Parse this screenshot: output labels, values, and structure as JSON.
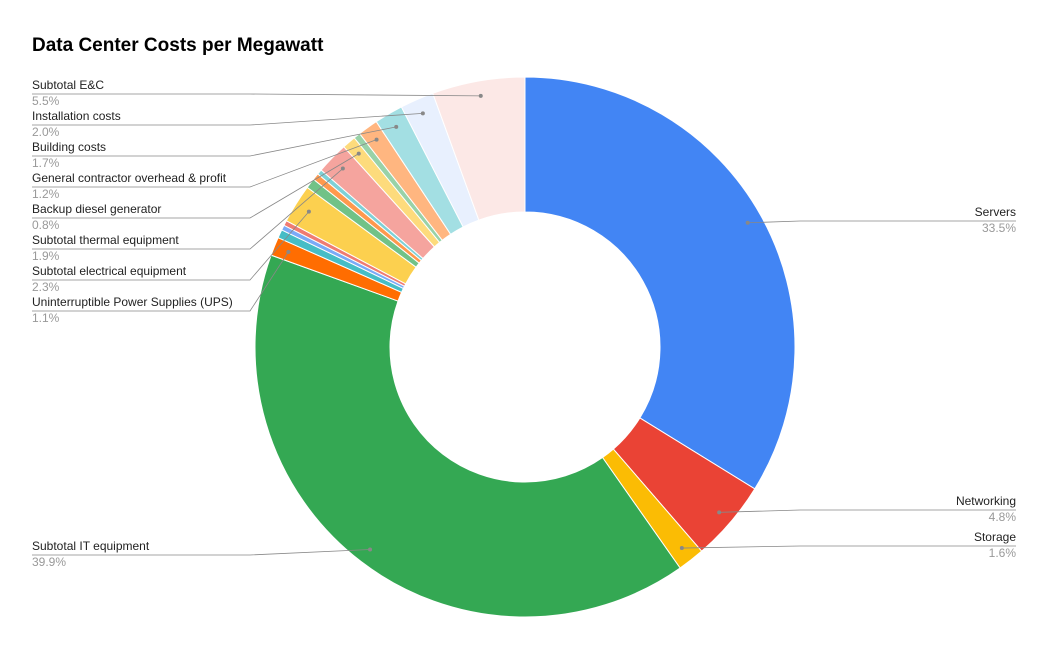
{
  "chart_data": {
    "type": "pie",
    "title": "Data Center Costs per Megawatt",
    "donut": true,
    "categories": [
      "Servers",
      "Networking",
      "Storage",
      "Subtotal IT equipment",
      "Uninterruptible Power Supplies (UPS)",
      null,
      null,
      null,
      "Subtotal electrical equipment",
      null,
      null,
      null,
      "Subtotal thermal equipment",
      "Backup diesel generator",
      null,
      "General contractor overhead & profit",
      "Building costs",
      "Installation costs",
      "Subtotal E&C"
    ],
    "values": [
      33.5,
      4.8,
      1.6,
      39.9,
      1.1,
      0.5,
      0.3,
      0.3,
      2.3,
      0.6,
      0.4,
      0.3,
      1.9,
      0.8,
      0.4,
      1.2,
      1.7,
      2.0,
      5.5
    ],
    "value_labels": [
      "33.5%",
      "4.8%",
      "1.6%",
      "39.9%",
      "1.1%",
      null,
      null,
      null,
      "2.3%",
      null,
      null,
      null,
      "1.9%",
      "0.8%",
      null,
      "1.2%",
      "1.7%",
      "2.0%",
      "5.5%"
    ],
    "colors": [
      "#4285f4",
      "#ea4335",
      "#fbbc04",
      "#34a853",
      "#ff6d01",
      "#46bdc6",
      "#7baaf7",
      "#f07b72",
      "#fcd04f",
      "#71c287",
      "#ff994d",
      "#7ed1d7",
      "#f5a49e",
      "#fddb7c",
      "#99d2a8",
      "#ffb680",
      "#a3dfe3",
      "#e8f0fe",
      "#fce8e6"
    ]
  }
}
